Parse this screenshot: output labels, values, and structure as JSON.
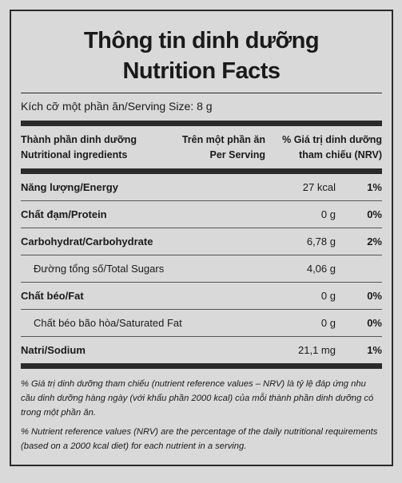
{
  "title": {
    "line1": "Thông tin dinh dưỡng",
    "line2": "Nutrition Facts"
  },
  "serving_size": "Kích cỡ một phần ăn/Serving Size: 8 g",
  "header": {
    "ingredient": [
      "Thành phần dinh dưỡng",
      "Nutritional ingredients"
    ],
    "per_serving": [
      "Trên một phần ăn",
      "Per Serving"
    ],
    "nrv": [
      "% Giá trị dinh dưỡng",
      "tham chiếu (NRV)"
    ]
  },
  "rows": [
    {
      "name": "Năng lượng/Energy",
      "amount": "27 kcal",
      "nrv": "1%",
      "bold": true
    },
    {
      "name": "Chất đạm/Protein",
      "amount": "0 g",
      "nrv": "0%",
      "bold": true
    },
    {
      "name": "Carbohydrat/Carbohydrate",
      "amount": "6,78 g",
      "nrv": "2%",
      "bold": true
    },
    {
      "name": "Đường tổng số/Total Sugars",
      "amount": "4,06 g",
      "bold": false
    },
    {
      "name": "Chất béo/Fat",
      "amount": "0 g",
      "nrv": "0%",
      "bold": true
    },
    {
      "name": "Chất béo bão hòa/Saturated Fat",
      "amount": "0 g",
      "nrv": "0%",
      "bold": false
    },
    {
      "name": "Natri/Sodium",
      "amount": "21,1 mg",
      "nrv": "1%",
      "bold": true
    }
  ],
  "footnotes": [
    "% Giá trị dinh dưỡng tham chiếu (nutrient reference values – NRV) là tỷ lệ đáp ứng nhu cầu dinh dưỡng hàng ngày (với khẩu phần 2000 kcal) của mỗi thành phần dinh dưỡng có trong một phần ăn.",
    "% Nutrient reference values (NRV) are the percentage of the daily nutritional requirements (based on a 2000 kcal diet) for each nutrient in a serving."
  ]
}
